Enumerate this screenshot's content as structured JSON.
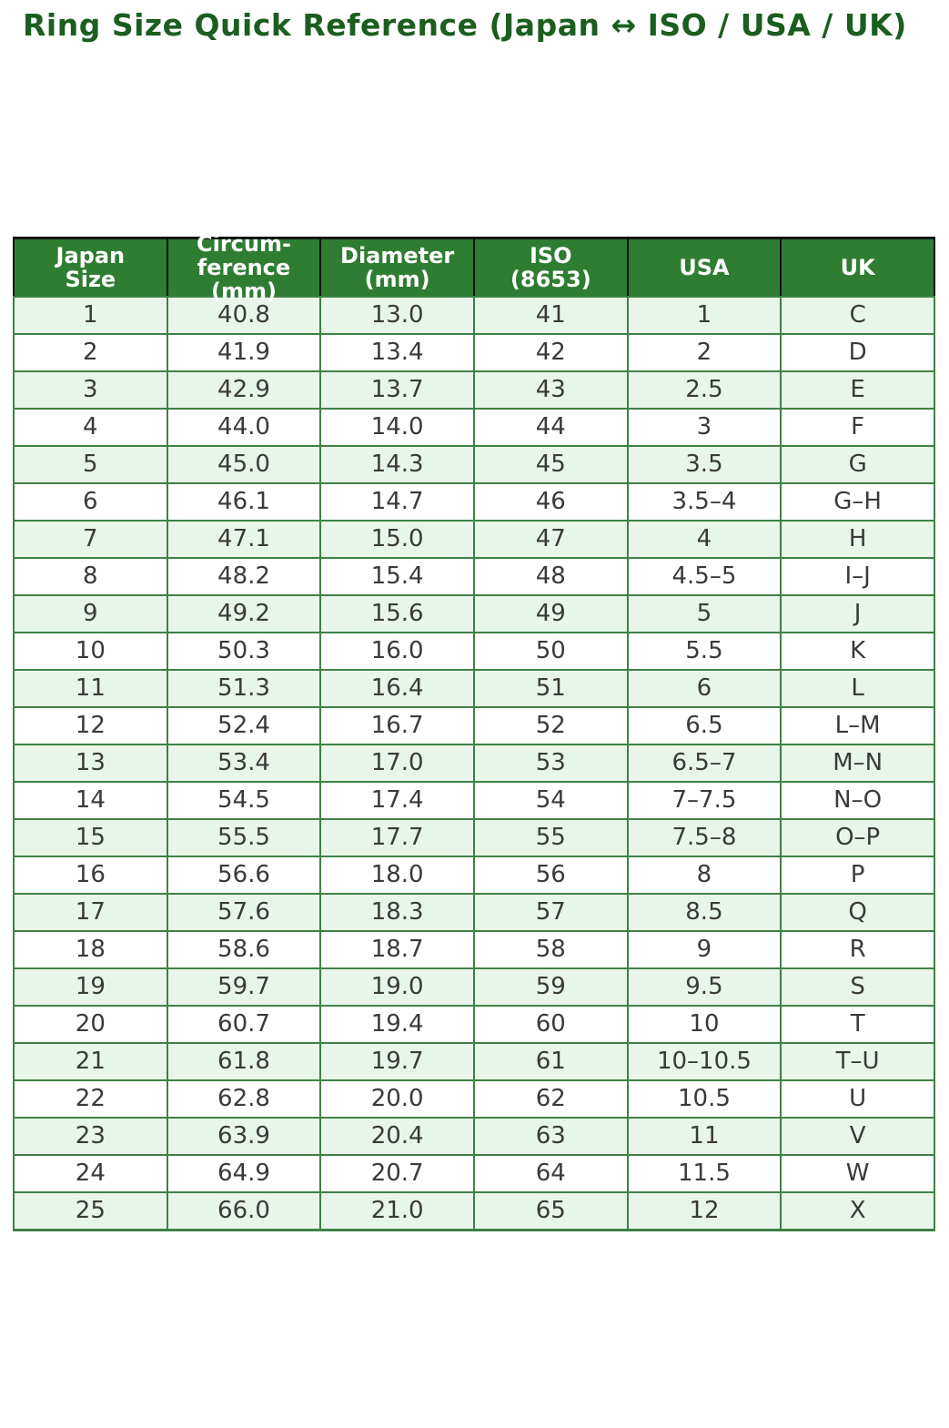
{
  "title": "Ring Size Quick Reference (Japan ↔ ISO / USA / UK)",
  "chart_data": {
    "type": "table",
    "title": "Ring Size Quick Reference (Japan ↔ ISO / USA / UK)",
    "columns": [
      "Japan\nSize",
      "Circum-\nference\n(mm)",
      "Diameter\n(mm)",
      "ISO\n(8653)",
      "USA",
      "UK"
    ],
    "column_slugs": [
      "japan-size",
      "circumference-mm",
      "diameter-mm",
      "iso-8653",
      "usa",
      "uk"
    ],
    "rows": [
      [
        "1",
        "40.8",
        "13.0",
        "41",
        "1",
        "C"
      ],
      [
        "2",
        "41.9",
        "13.4",
        "42",
        "2",
        "D"
      ],
      [
        "3",
        "42.9",
        "13.7",
        "43",
        "2.5",
        "E"
      ],
      [
        "4",
        "44.0",
        "14.0",
        "44",
        "3",
        "F"
      ],
      [
        "5",
        "45.0",
        "14.3",
        "45",
        "3.5",
        "G"
      ],
      [
        "6",
        "46.1",
        "14.7",
        "46",
        "3.5–4",
        "G–H"
      ],
      [
        "7",
        "47.1",
        "15.0",
        "47",
        "4",
        "H"
      ],
      [
        "8",
        "48.2",
        "15.4",
        "48",
        "4.5–5",
        "I–J"
      ],
      [
        "9",
        "49.2",
        "15.6",
        "49",
        "5",
        "J"
      ],
      [
        "10",
        "50.3",
        "16.0",
        "50",
        "5.5",
        "K"
      ],
      [
        "11",
        "51.3",
        "16.4",
        "51",
        "6",
        "L"
      ],
      [
        "12",
        "52.4",
        "16.7",
        "52",
        "6.5",
        "L–M"
      ],
      [
        "13",
        "53.4",
        "17.0",
        "53",
        "6.5–7",
        "M–N"
      ],
      [
        "14",
        "54.5",
        "17.4",
        "54",
        "7–7.5",
        "N–O"
      ],
      [
        "15",
        "55.5",
        "17.7",
        "55",
        "7.5–8",
        "O–P"
      ],
      [
        "16",
        "56.6",
        "18.0",
        "56",
        "8",
        "P"
      ],
      [
        "17",
        "57.6",
        "18.3",
        "57",
        "8.5",
        "Q"
      ],
      [
        "18",
        "58.6",
        "18.7",
        "58",
        "9",
        "R"
      ],
      [
        "19",
        "59.7",
        "19.0",
        "59",
        "9.5",
        "S"
      ],
      [
        "20",
        "60.7",
        "19.4",
        "60",
        "10",
        "T"
      ],
      [
        "21",
        "61.8",
        "19.7",
        "61",
        "10–10.5",
        "T–U"
      ],
      [
        "22",
        "62.8",
        "20.0",
        "62",
        "10.5",
        "U"
      ],
      [
        "23",
        "63.9",
        "20.4",
        "63",
        "11",
        "V"
      ],
      [
        "24",
        "64.9",
        "20.7",
        "64",
        "11.5",
        "W"
      ],
      [
        "25",
        "66.0",
        "21.0",
        "65",
        "12",
        "X"
      ]
    ],
    "layout": {
      "striped_rows": true,
      "first_body_row_shaded": true
    }
  },
  "colors": {
    "title": "#1b5e20",
    "header_bg": "#2e7d32",
    "header_text": "#ffffff",
    "header_border": "#111111",
    "body_border": "#3f8145",
    "body_text": "#3a3a3a",
    "row_bg": "#ffffff",
    "row_alt_bg": "#e8f5e9"
  }
}
